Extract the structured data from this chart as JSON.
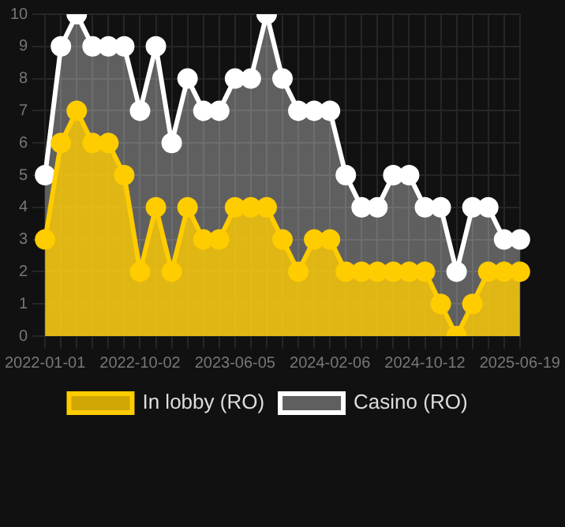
{
  "chart_data": {
    "type": "area",
    "categories": [
      "2022-01-01",
      null,
      null,
      null,
      null,
      null,
      "2022-10-02",
      null,
      null,
      null,
      null,
      null,
      "2023-06-05",
      null,
      null,
      null,
      null,
      null,
      "2024-02-06",
      null,
      null,
      null,
      null,
      null,
      "2024-10-12",
      null,
      null,
      null,
      null,
      null,
      "2025-06-19"
    ],
    "series": [
      {
        "name": "In lobby (RO)",
        "color": "#ffcc00",
        "values": [
          3,
          6,
          7,
          6,
          6,
          5,
          2,
          4,
          2,
          4,
          3,
          3,
          4,
          4,
          4,
          3,
          2,
          3,
          3,
          2,
          2,
          2,
          2,
          2,
          2,
          1,
          0,
          1,
          2,
          2,
          2
        ]
      },
      {
        "name": "Casino (RO)",
        "color": "#ffffff",
        "values": [
          5,
          9,
          10,
          9,
          9,
          9,
          7,
          9,
          6,
          8,
          7,
          7,
          8,
          8,
          10,
          8,
          7,
          7,
          7,
          5,
          4,
          4,
          5,
          5,
          4,
          4,
          2,
          4,
          4,
          3,
          3
        ]
      }
    ],
    "ylim": [
      0,
      10
    ],
    "yticks": [
      0,
      1,
      2,
      3,
      4,
      5,
      6,
      7,
      8,
      9,
      10
    ],
    "grid": true,
    "legend": "bottom",
    "marker": "circle"
  }
}
